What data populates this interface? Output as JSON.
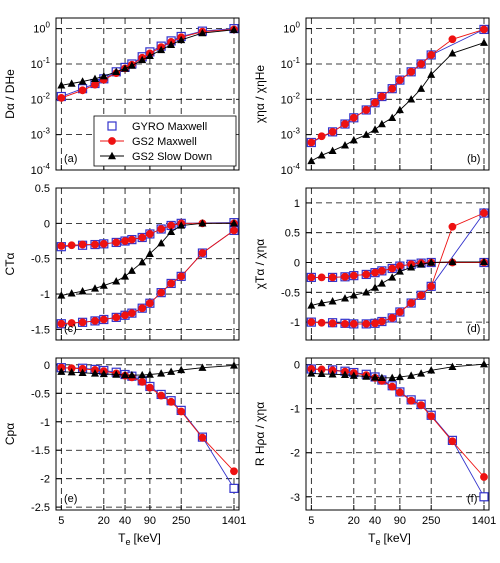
{
  "chart_data": {
    "type": "scatter",
    "x_ticks": [
      5,
      20,
      40,
      90,
      250,
      1401
    ],
    "x_scale": "log",
    "xlim": [
      4.2,
      1650
    ],
    "xlabel_main": "T",
    "xlabel_sub": "e",
    "xlabel_unit": "[keV]",
    "marker_colors": {
      "gyro": "#3333cc",
      "gs2_maxwell": "#ee1111",
      "gs2_slowdown": "#000000"
    },
    "legend": {
      "placement": "panel-a-lower-right",
      "entries": [
        {
          "key": "gyro",
          "label": "GYRO Maxwell",
          "marker": "square"
        },
        {
          "key": "gs2_maxwell",
          "label": "GS2 Maxwell",
          "marker": "circle"
        },
        {
          "key": "gs2_slowdown",
          "label": "GS2 Slow Down",
          "marker": "triangle"
        }
      ]
    },
    "panels": [
      {
        "id": "a",
        "label": "(a)",
        "ylabel_text": "Dα / DHe",
        "yscale": "log",
        "ylim": [
          0.0001,
          2
        ],
        "yticks": [
          1,
          0.1,
          0.01,
          0.001,
          0.0001
        ],
        "ytick_labels": [
          "10^0",
          "10^-1",
          "10^-2",
          "10^-3",
          "10^-4"
        ],
        "series": [
          {
            "key": "gyro",
            "x": [
              5,
              10,
              15,
              20,
              30,
              40,
              50,
              70,
              90,
              130,
              180,
              250,
              500,
              1401
            ],
            "y": [
              0.012,
              0.02,
              0.028,
              0.038,
              0.06,
              0.08,
              0.1,
              0.16,
              0.22,
              0.32,
              0.45,
              0.6,
              0.85,
              1.0
            ]
          },
          {
            "key": "gs2_maxwell",
            "x": [
              5,
              10,
              15,
              20,
              30,
              40,
              50,
              70,
              90,
              130,
              180,
              250,
              500,
              1401
            ],
            "y": [
              0.011,
              0.018,
              0.026,
              0.036,
              0.055,
              0.075,
              0.095,
              0.15,
              0.2,
              0.3,
              0.42,
              0.57,
              0.82,
              0.95
            ]
          },
          {
            "key": "gs2_slowdown",
            "x": [
              5,
              7,
              10,
              15,
              20,
              30,
              40,
              50,
              70,
              90,
              130,
              180,
              250,
              500,
              1401
            ],
            "y": [
              0.025,
              0.028,
              0.032,
              0.038,
              0.045,
              0.06,
              0.075,
              0.09,
              0.13,
              0.17,
              0.25,
              0.35,
              0.48,
              0.75,
              0.93
            ]
          }
        ]
      },
      {
        "id": "b",
        "label": "(b)",
        "ylabel_text": "χηα / χηHe",
        "yscale": "log",
        "ylim": [
          0.0001,
          2
        ],
        "yticks": [
          1,
          0.1,
          0.01,
          0.001,
          0.0001
        ],
        "ytick_labels": [
          "10^0",
          "10^-1",
          "10^-2",
          "10^-3",
          "10^-4"
        ],
        "series": [
          {
            "key": "gyro",
            "x": [
              5,
              10,
              15,
              20,
              30,
              40,
              50,
              70,
              90,
              130,
              180,
              250,
              1401
            ],
            "y": [
              0.0006,
              0.0012,
              0.002,
              0.003,
              0.005,
              0.008,
              0.012,
              0.02,
              0.035,
              0.06,
              0.1,
              0.18,
              0.95
            ]
          },
          {
            "key": "gs2_maxwell",
            "x": [
              5,
              7,
              10,
              15,
              20,
              30,
              40,
              50,
              70,
              90,
              130,
              180,
              250,
              500,
              1401
            ],
            "y": [
              0.0006,
              0.0009,
              0.0012,
              0.002,
              0.003,
              0.005,
              0.008,
              0.012,
              0.02,
              0.035,
              0.06,
              0.1,
              0.18,
              0.5,
              0.95
            ]
          },
          {
            "key": "gs2_slowdown",
            "x": [
              5,
              7,
              10,
              15,
              20,
              30,
              40,
              50,
              70,
              90,
              130,
              180,
              250,
              500,
              1401
            ],
            "y": [
              0.00018,
              0.00026,
              0.00035,
              0.0005,
              0.0007,
              0.001,
              0.0014,
              0.002,
              0.003,
              0.005,
              0.01,
              0.02,
              0.05,
              0.2,
              0.4
            ]
          }
        ]
      },
      {
        "id": "c",
        "label": "(c)",
        "ylabel_text": "CTα",
        "yscale": "linear",
        "ylim": [
          -1.65,
          0.5
        ],
        "yticks": [
          0.5,
          0,
          -0.5,
          -1,
          -1.5
        ],
        "ytick_labels": [
          "0.5",
          "0",
          "-0.5",
          "-1",
          "-1.5"
        ],
        "series": [
          {
            "key": "gyro",
            "x": [
              5,
              10,
              15,
              20,
              30,
              40,
              50,
              70,
              90,
              130,
              180,
              250,
              1401
            ],
            "y": [
              -0.33,
              -0.31,
              -0.3,
              -0.29,
              -0.27,
              -0.25,
              -0.23,
              -0.2,
              -0.15,
              -0.08,
              -0.03,
              0.0,
              0.01
            ]
          },
          {
            "key": "gs2_maxwell",
            "x": [
              5,
              7,
              10,
              15,
              20,
              30,
              40,
              50,
              70,
              90,
              130,
              180,
              250,
              500,
              1401
            ],
            "y": [
              -0.32,
              -0.31,
              -0.3,
              -0.3,
              -0.29,
              -0.27,
              -0.25,
              -0.23,
              -0.2,
              -0.15,
              -0.08,
              -0.03,
              0.0,
              0.0,
              0.0
            ]
          },
          {
            "key": "gs2_slowdown",
            "x": [
              5,
              7,
              10,
              15,
              20,
              30,
              40,
              50,
              70,
              90,
              130,
              180,
              250,
              500,
              1401
            ],
            "y": [
              -1.02,
              -0.99,
              -0.96,
              -0.92,
              -0.88,
              -0.82,
              -0.75,
              -0.67,
              -0.55,
              -0.43,
              -0.28,
              -0.12,
              -0.03,
              0.0,
              0.0
            ]
          }
        ],
        "lower_series": [
          {
            "key": "gyro",
            "x": [
              5,
              10,
              15,
              20,
              30,
              40,
              50,
              70,
              90,
              130,
              180,
              250,
              500,
              1401
            ],
            "y": [
              -1.42,
              -1.4,
              -1.38,
              -1.36,
              -1.33,
              -1.3,
              -1.27,
              -1.2,
              -1.13,
              -0.98,
              -0.85,
              -0.75,
              -0.42,
              -0.1
            ]
          },
          {
            "key": "gs2_maxwell",
            "x": [
              5,
              7,
              10,
              15,
              20,
              30,
              40,
              50,
              70,
              90,
              130,
              180,
              250,
              500,
              1401
            ],
            "y": [
              -1.42,
              -1.41,
              -1.4,
              -1.38,
              -1.36,
              -1.33,
              -1.3,
              -1.27,
              -1.2,
              -1.13,
              -0.98,
              -0.85,
              -0.75,
              -0.42,
              -0.1
            ]
          }
        ]
      },
      {
        "id": "d",
        "label": "(d)",
        "ylabel_text": "χTα / χηα",
        "yscale": "linear",
        "ylim": [
          -1.3,
          1.25
        ],
        "yticks": [
          1,
          0.5,
          0,
          -0.5,
          -1
        ],
        "ytick_labels": [
          "1",
          "0.5",
          "0",
          "-0.5",
          "-1"
        ],
        "series": [
          {
            "key": "gyro",
            "x": [
              5,
              10,
              15,
              20,
              30,
              40,
              50,
              70,
              90,
              130,
              180,
              250,
              1401
            ],
            "y": [
              -0.25,
              -0.25,
              -0.24,
              -0.22,
              -0.2,
              -0.17,
              -0.14,
              -0.1,
              -0.06,
              -0.03,
              -0.01,
              0.0,
              0.0
            ]
          },
          {
            "key": "gs2_maxwell",
            "x": [
              5,
              7,
              10,
              15,
              20,
              30,
              40,
              50,
              70,
              90,
              130,
              180,
              250,
              500,
              1401
            ],
            "y": [
              -0.25,
              -0.25,
              -0.25,
              -0.24,
              -0.22,
              -0.2,
              -0.17,
              -0.14,
              -0.1,
              -0.06,
              -0.03,
              -0.01,
              0.0,
              0.0,
              0.0
            ]
          },
          {
            "key": "gs2_slowdown",
            "x": [
              5,
              7,
              10,
              15,
              20,
              30,
              40,
              50,
              70,
              90,
              130,
              180,
              250,
              500,
              1401
            ],
            "y": [
              -0.72,
              -0.68,
              -0.65,
              -0.6,
              -0.55,
              -0.5,
              -0.42,
              -0.35,
              -0.25,
              -0.15,
              -0.08,
              -0.03,
              0.0,
              0.01,
              0.01
            ]
          }
        ],
        "lower_series": [
          {
            "key": "gyro",
            "x": [
              5,
              10,
              15,
              20,
              30,
              40,
              50,
              70,
              90,
              130,
              180,
              250,
              1401
            ],
            "y": [
              -1.0,
              -1.01,
              -1.02,
              -1.03,
              -1.03,
              -1.02,
              -0.99,
              -0.93,
              -0.83,
              -0.68,
              -0.55,
              -0.4,
              0.83
            ]
          },
          {
            "key": "gs2_maxwell",
            "x": [
              5,
              7,
              10,
              15,
              20,
              30,
              40,
              50,
              70,
              90,
              130,
              180,
              250,
              500,
              1401
            ],
            "y": [
              -1.0,
              -1.01,
              -1.02,
              -1.03,
              -1.03,
              -1.03,
              -1.02,
              -0.99,
              -0.93,
              -0.83,
              -0.68,
              -0.55,
              -0.4,
              0.6,
              0.83
            ]
          }
        ]
      },
      {
        "id": "e",
        "label": "(e)",
        "ylabel_text": "Cpα",
        "yscale": "linear",
        "ylim": [
          -2.55,
          0.12
        ],
        "yticks": [
          0,
          -0.5,
          -1,
          -1.5,
          -2,
          -2.5
        ],
        "ytick_labels": [
          "0",
          "-0.5",
          "-1",
          "-1.5",
          "-2",
          "-2.5"
        ],
        "series": [
          {
            "key": "gyro",
            "x": [
              5,
              10,
              15,
              20,
              30,
              40,
              50,
              70,
              90,
              130,
              180,
              250,
              500,
              1401
            ],
            "y": [
              -0.05,
              -0.06,
              -0.08,
              -0.1,
              -0.13,
              -0.17,
              -0.2,
              -0.28,
              -0.38,
              -0.52,
              -0.63,
              -0.8,
              -1.27,
              -2.17
            ]
          },
          {
            "key": "gs2_maxwell",
            "x": [
              5,
              7,
              10,
              15,
              20,
              30,
              40,
              50,
              70,
              90,
              130,
              180,
              250,
              500,
              1401
            ],
            "y": [
              -0.05,
              -0.06,
              -0.07,
              -0.09,
              -0.11,
              -0.15,
              -0.19,
              -0.22,
              -0.3,
              -0.4,
              -0.54,
              -0.65,
              -0.82,
              -1.28,
              -1.87
            ]
          },
          {
            "key": "gs2_slowdown",
            "x": [
              5,
              7,
              10,
              15,
              20,
              30,
              40,
              50,
              70,
              90,
              130,
              180,
              250,
              500,
              1401
            ],
            "y": [
              -0.12,
              -0.13,
              -0.14,
              -0.15,
              -0.16,
              -0.17,
              -0.18,
              -0.18,
              -0.18,
              -0.17,
              -0.15,
              -0.12,
              -0.09,
              -0.05,
              -0.01
            ]
          }
        ]
      },
      {
        "id": "f",
        "label": "(f)",
        "ylabel_text": "R Hρα / χηα",
        "yscale": "linear",
        "ylim": [
          -3.3,
          0.15
        ],
        "yticks": [
          0,
          -1,
          -2,
          -3
        ],
        "ytick_labels": [
          "0",
          "-1",
          "-2",
          "-3"
        ],
        "series": [
          {
            "key": "gyro",
            "x": [
              5,
              10,
              15,
              20,
              30,
              40,
              50,
              70,
              90,
              130,
              180,
              250,
              500,
              1401
            ],
            "y": [
              -0.1,
              -0.12,
              -0.15,
              -0.18,
              -0.22,
              -0.28,
              -0.35,
              -0.48,
              -0.62,
              -0.8,
              -0.9,
              -1.15,
              -1.72,
              -3.0
            ]
          },
          {
            "key": "gs2_maxwell",
            "x": [
              5,
              7,
              10,
              15,
              20,
              30,
              40,
              50,
              70,
              90,
              130,
              180,
              250,
              500,
              1401
            ],
            "y": [
              -0.1,
              -0.11,
              -0.13,
              -0.16,
              -0.19,
              -0.24,
              -0.3,
              -0.37,
              -0.5,
              -0.63,
              -0.82,
              -0.92,
              -1.17,
              -1.74,
              -2.55
            ]
          },
          {
            "key": "gs2_slowdown",
            "x": [
              5,
              7,
              10,
              15,
              20,
              30,
              40,
              50,
              70,
              90,
              130,
              180,
              250,
              500,
              1401
            ],
            "y": [
              -0.2,
              -0.21,
              -0.22,
              -0.23,
              -0.25,
              -0.27,
              -0.29,
              -0.3,
              -0.3,
              -0.28,
              -0.25,
              -0.2,
              -0.13,
              -0.05,
              0.01
            ]
          }
        ]
      }
    ]
  }
}
